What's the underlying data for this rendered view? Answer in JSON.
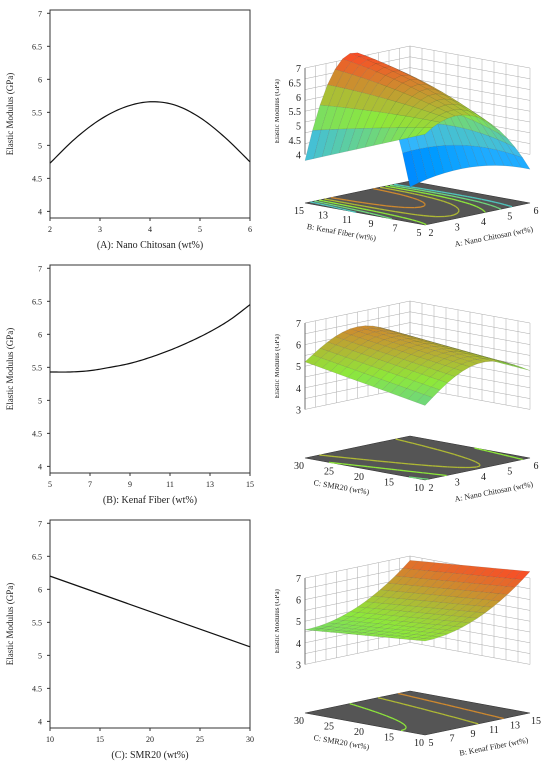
{
  "chart_data": [
    {
      "type": "line",
      "panel": "A-2d",
      "xlabel": "(A): Nano Chitosan (wt%)",
      "ylabel": "Elastic Modulus (GPa)",
      "xlim": [
        2,
        6
      ],
      "ylim": [
        3.9,
        7.05
      ],
      "xticks": [
        "2",
        "3",
        "4",
        "5",
        "6"
      ],
      "yticks": [
        "4",
        "4.5",
        "5",
        "5.5",
        "6",
        "6.5",
        "7"
      ],
      "x": [
        2,
        2.5,
        3,
        3.5,
        4,
        4.5,
        5,
        5.5,
        6
      ],
      "y": [
        4.73,
        5.1,
        5.39,
        5.58,
        5.66,
        5.61,
        5.42,
        5.12,
        4.75
      ]
    },
    {
      "type": "line",
      "panel": "B-2d",
      "xlabel": "(B): Kenaf Fiber (wt%)",
      "ylabel": "Elastic Modulus (GPa)",
      "xlim": [
        5,
        15
      ],
      "ylim": [
        3.9,
        7.05
      ],
      "xticks": [
        "5",
        "7",
        "9",
        "11",
        "13",
        "15"
      ],
      "yticks": [
        "4",
        "4.5",
        "5",
        "5.5",
        "6",
        "6.5",
        "7"
      ],
      "x": [
        5,
        6,
        7,
        8,
        9,
        10,
        11,
        12,
        13,
        14,
        15
      ],
      "y": [
        5.43,
        5.43,
        5.45,
        5.5,
        5.56,
        5.65,
        5.76,
        5.89,
        6.04,
        6.22,
        6.45
      ]
    },
    {
      "type": "line",
      "panel": "C-2d",
      "xlabel": "(C): SMR20 (wt%)",
      "ylabel": "Elastic Modulus (GPa)",
      "xlim": [
        10,
        30
      ],
      "ylim": [
        3.9,
        7.05
      ],
      "xticks": [
        "10",
        "15",
        "20",
        "25",
        "30"
      ],
      "yticks": [
        "4",
        "4.5",
        "5",
        "5.5",
        "6",
        "6.5",
        "7"
      ],
      "x": [
        10,
        30
      ],
      "y": [
        6.2,
        5.13
      ]
    },
    {
      "type": "surface",
      "panel": "A-3d",
      "zlabel": "Elastic Modulus (GPa)",
      "xlabel": "A: Nano Chitosan (wt%)",
      "ylabel": "B: Kenaf Fiber (wt%)",
      "xticks": [
        "2",
        "3",
        "4",
        "5",
        "6"
      ],
      "yticks": [
        "5",
        "7",
        "9",
        "11",
        "13",
        "15"
      ],
      "zticks": [
        "4",
        "4.5",
        "5",
        "5.5",
        "6",
        "6.5",
        "7"
      ]
    },
    {
      "type": "surface",
      "panel": "B-3d",
      "zlabel": "Elastic Modulus (GPa)",
      "xlabel": "A: Nano Chitosan (wt%)",
      "ylabel": "C: SMR20 (wt%)",
      "xticks": [
        "2",
        "3",
        "4",
        "5",
        "6"
      ],
      "yticks": [
        "10",
        "15",
        "20",
        "25",
        "30"
      ],
      "zticks": [
        "3",
        "4",
        "5",
        "6",
        "7"
      ]
    },
    {
      "type": "surface",
      "panel": "C-3d",
      "zlabel": "Elastic Modulus (GPa)",
      "xlabel": "B: Kenaf Fiber (wt%)",
      "ylabel": "C: SMR20 (wt%)",
      "xticks": [
        "5",
        "7",
        "9",
        "11",
        "13",
        "15"
      ],
      "yticks": [
        "10",
        "15",
        "20",
        "25",
        "30"
      ],
      "zticks": [
        "3",
        "4",
        "5",
        "6",
        "7"
      ]
    }
  ],
  "colors": {
    "axis": "#333333",
    "line": "#111111",
    "surface_low": "#30b5ff",
    "surface_mid": "#8ee83a",
    "surface_high": "#f05a28",
    "floor": "#555555"
  }
}
